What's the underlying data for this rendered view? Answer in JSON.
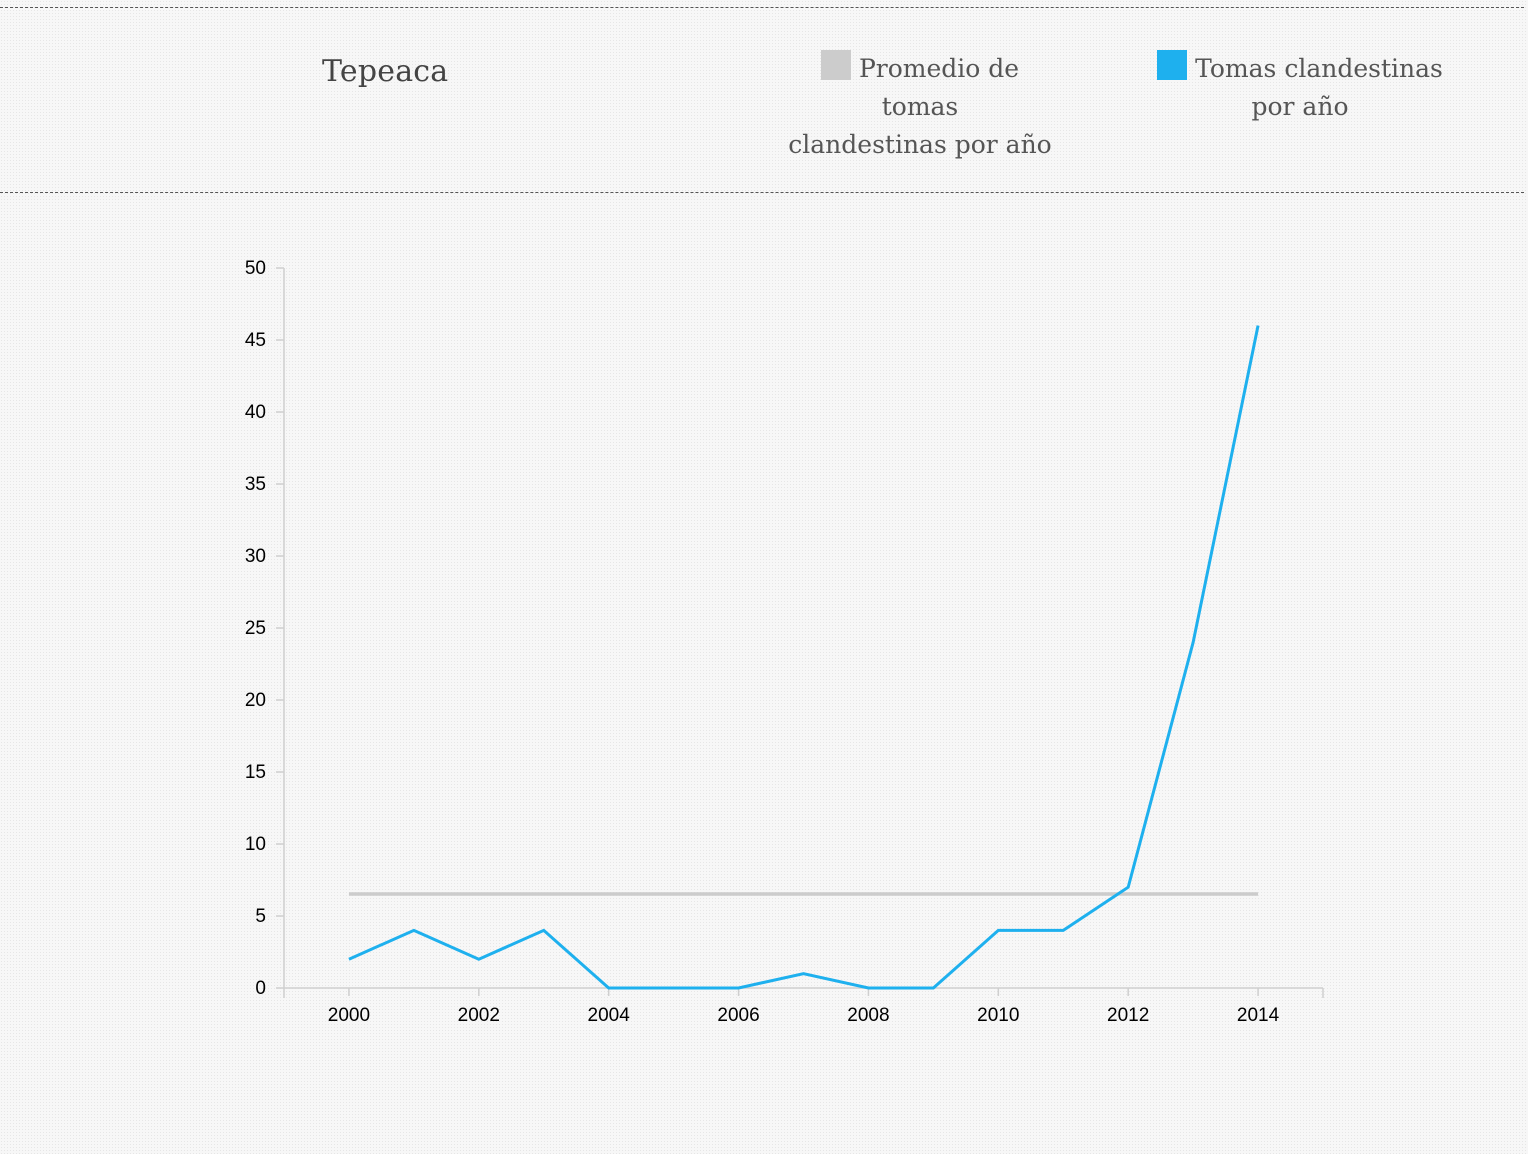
{
  "header": {
    "title": "Tepeaca",
    "legend": [
      {
        "line1": "Promedio de tomas",
        "line2": "clandestinas por año",
        "color": "#cccccc"
      },
      {
        "line1": "Tomas clandestinas",
        "line2": "por año",
        "color": "#1eb0ee"
      }
    ]
  },
  "chart_data": {
    "type": "line",
    "title": "Tepeaca",
    "xlabel": "",
    "ylabel": "",
    "xlim": [
      1999,
      2015
    ],
    "ylim": [
      0,
      50
    ],
    "x_ticks": [
      2000,
      2002,
      2004,
      2006,
      2008,
      2010,
      2012,
      2014
    ],
    "y_ticks": [
      0,
      5,
      10,
      15,
      20,
      25,
      30,
      35,
      40,
      45,
      50
    ],
    "x": [
      2000,
      2001,
      2002,
      2003,
      2004,
      2005,
      2006,
      2007,
      2008,
      2009,
      2010,
      2011,
      2012,
      2013,
      2014
    ],
    "series": [
      {
        "name": "Tomas clandestinas por año",
        "color": "#1eb0ee",
        "values": [
          2,
          4,
          2,
          4,
          0,
          0,
          0,
          1,
          0,
          0,
          4,
          4,
          7,
          24,
          46
        ]
      },
      {
        "name": "Promedio de tomas clandestinas por año",
        "color": "#cccccc",
        "values": [
          6.53,
          6.53,
          6.53,
          6.53,
          6.53,
          6.53,
          6.53,
          6.53,
          6.53,
          6.53,
          6.53,
          6.53,
          6.53,
          6.53,
          6.53
        ]
      }
    ],
    "grid": false,
    "legend_position": "top-right"
  }
}
